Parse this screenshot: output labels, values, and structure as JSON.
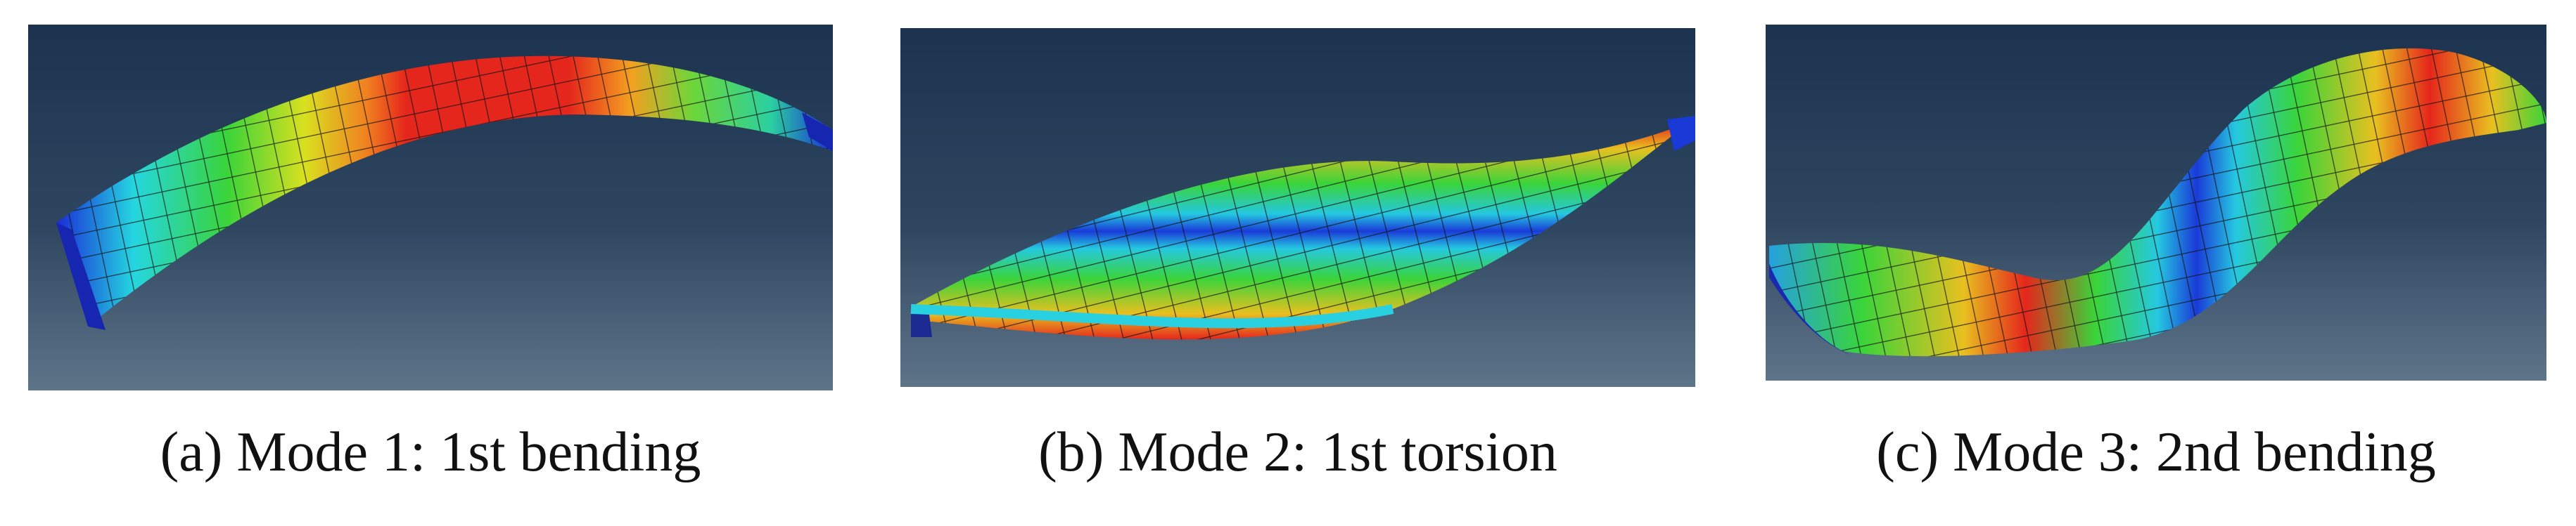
{
  "figure": {
    "panels": [
      {
        "label": "(a)",
        "caption": "Mode 1: 1st bending"
      },
      {
        "label": "(b)",
        "caption": "Mode 2: 1st torsion"
      },
      {
        "label": "(c)",
        "caption": "Mode 3: 2nd bending"
      }
    ]
  }
}
